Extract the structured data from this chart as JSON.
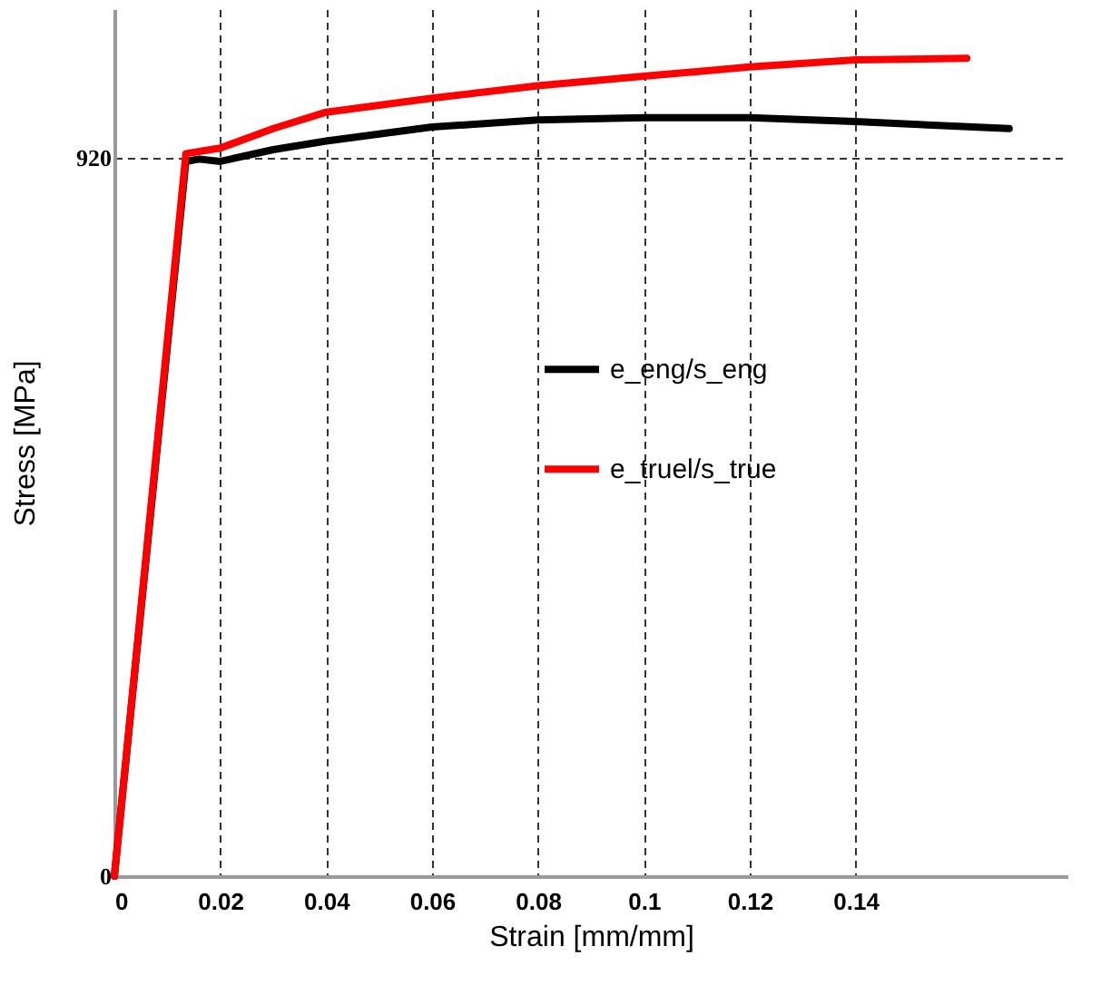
{
  "chart_data": {
    "type": "line",
    "xlabel": "Strain [mm/mm]",
    "ylabel": "Stress [MPa]",
    "xlim": [
      0,
      0.18
    ],
    "xticks": [
      0,
      0.02,
      0.04,
      0.06,
      0.08,
      0.1,
      0.12,
      0.14
    ],
    "ylim": [
      0,
      1110
    ],
    "yticks": [
      0,
      920
    ],
    "grid": true,
    "line_style": "solid",
    "marker": "none",
    "legend": "right",
    "series": [
      {
        "name": "e_eng/s_eng",
        "color": "#000000",
        "x": [
          0,
          0.0135,
          0.016,
          0.02,
          0.03,
          0.04,
          0.06,
          0.08,
          0.1,
          0.12,
          0.14,
          0.169
        ],
        "values": [
          0,
          915,
          918,
          915,
          930,
          941,
          959,
          968,
          971,
          971,
          966,
          957
        ]
      },
      {
        "name": "e_truel/s_true",
        "color": "#ff0000",
        "x": [
          0,
          0.0135,
          0.02,
          0.03,
          0.04,
          0.06,
          0.08,
          0.1,
          0.12,
          0.14,
          0.161
        ],
        "values": [
          0,
          925,
          932,
          957,
          978,
          996,
          1012,
          1024,
          1036,
          1045,
          1047
        ]
      }
    ]
  }
}
